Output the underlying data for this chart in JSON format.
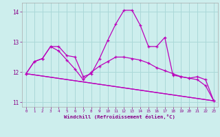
{
  "xlabel": "Windchill (Refroidissement éolien,°C)",
  "background_color": "#cdeeed",
  "grid_color": "#aad8d8",
  "line_color": "#bb00bb",
  "x": [
    0,
    1,
    2,
    3,
    4,
    5,
    6,
    7,
    8,
    9,
    10,
    11,
    12,
    13,
    14,
    15,
    16,
    17,
    18,
    19,
    20,
    21,
    22,
    23
  ],
  "series1": [
    11.95,
    12.35,
    12.45,
    12.85,
    12.85,
    12.55,
    12.5,
    11.85,
    11.95,
    12.45,
    13.05,
    13.6,
    14.05,
    14.05,
    13.55,
    12.85,
    12.85,
    13.15,
    11.9,
    11.85,
    11.8,
    11.85,
    11.75,
    11.05
  ],
  "series2": [
    11.95,
    12.35,
    12.45,
    12.85,
    12.7,
    12.4,
    12.1,
    11.75,
    12.0,
    12.2,
    12.35,
    12.5,
    12.5,
    12.45,
    12.4,
    12.3,
    12.15,
    12.05,
    11.95,
    11.85,
    11.8,
    11.75,
    11.55,
    11.05
  ],
  "series3_x": [
    0,
    23
  ],
  "series3_y": [
    11.95,
    11.05
  ],
  "series4_x": [
    0,
    23
  ],
  "series4_y": [
    11.95,
    11.05
  ],
  "ylim": [
    10.85,
    14.3
  ],
  "xlim": [
    -0.5,
    23.5
  ],
  "yticks": [
    11,
    12,
    13,
    14
  ],
  "xticks": [
    0,
    1,
    2,
    3,
    4,
    5,
    6,
    7,
    8,
    9,
    10,
    11,
    12,
    13,
    14,
    15,
    16,
    17,
    18,
    19,
    20,
    21,
    22,
    23
  ]
}
